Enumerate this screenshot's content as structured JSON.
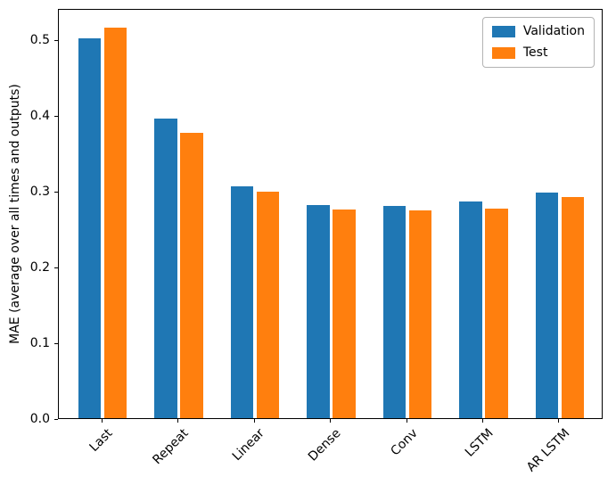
{
  "chart_data": {
    "type": "bar",
    "title": "",
    "xlabel": "",
    "ylabel": "MAE (average over all times and outputs)",
    "categories": [
      "Last",
      "Repeat",
      "Linear",
      "Dense",
      "Conv",
      "LSTM",
      "AR LSTM"
    ],
    "series": [
      {
        "name": "Validation",
        "color": "#1f77b4",
        "values": [
          0.501,
          0.396,
          0.306,
          0.281,
          0.28,
          0.286,
          0.298
        ]
      },
      {
        "name": "Test",
        "color": "#ff7f0e",
        "values": [
          0.516,
          0.377,
          0.299,
          0.276,
          0.274,
          0.277,
          0.292
        ]
      }
    ],
    "ylim": [
      0,
      0.5415
    ],
    "yticks": [
      0.0,
      0.1,
      0.2,
      0.3,
      0.4,
      0.5
    ],
    "grid": false,
    "legend_position": "upper right",
    "x_tick_rotation_deg": 45
  }
}
